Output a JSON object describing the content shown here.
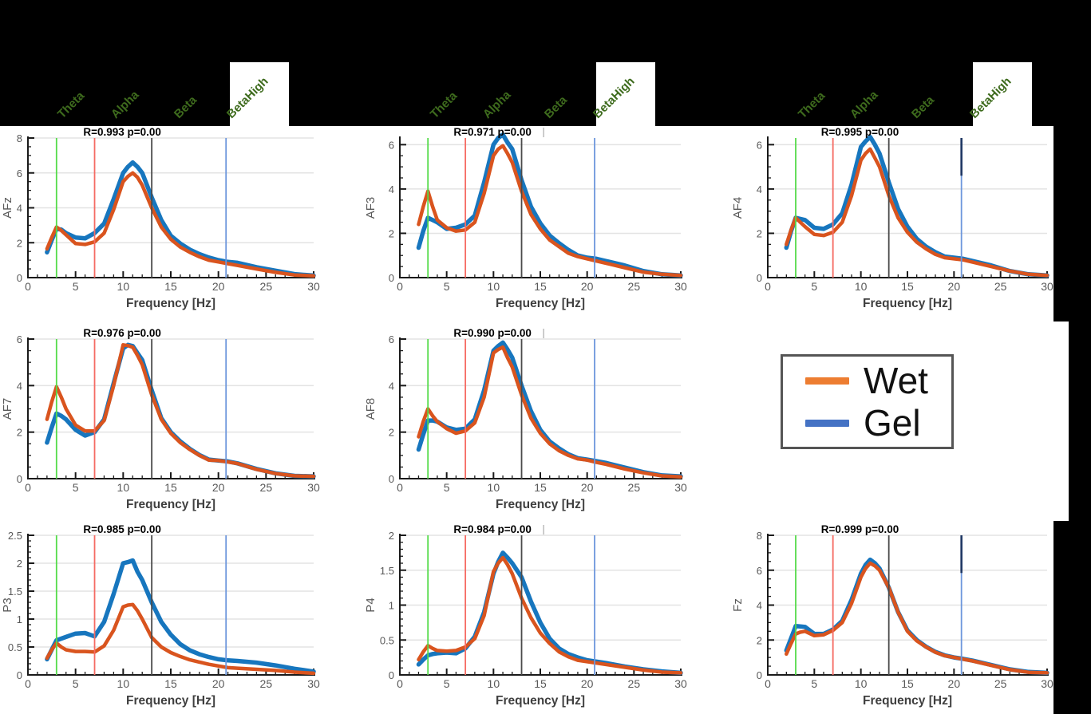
{
  "bands": {
    "labels": [
      "Theta",
      "Alpha",
      "Beta",
      "BetaHigh"
    ],
    "label_color": "#3E6B1D",
    "vlines": [
      {
        "freq": 3,
        "color": "#55DB4A"
      },
      {
        "freq": 7,
        "color": "#F56B63"
      },
      {
        "freq": 13,
        "color": "#4A4A4A"
      },
      {
        "freq": 20.8,
        "color": "#6C96DC"
      }
    ],
    "navy_cap_color": "#1F3864"
  },
  "legend": {
    "items": [
      {
        "label": "Wet",
        "color": "#ED7D31"
      },
      {
        "label": "Gel",
        "color": "#4472C4"
      }
    ]
  },
  "axis": {
    "xlabel": "Frequency [Hz]",
    "xticks": [
      0,
      5,
      10,
      15,
      20,
      25,
      30
    ],
    "xlim": [
      0,
      30
    ],
    "x_minor_step": 1
  },
  "colors": {
    "wet": "#D9541E",
    "gel": "#1776BE",
    "grid": "#E3E3E3",
    "spine": "#1A1A1A",
    "tick_label": "#595959",
    "channel_label": "#595959",
    "title": "#000000",
    "xlabel": "#3F3F3F",
    "title_artifact": "#BBBBBB"
  },
  "chart_data": {
    "type": "line",
    "x_label": "Frequency [Hz]",
    "series_names": [
      "Wet",
      "Gel"
    ],
    "x": [
      2,
      2.5,
      3,
      3.5,
      4,
      5,
      6,
      7,
      8,
      9,
      10,
      10.5,
      11,
      11.5,
      12,
      13,
      14,
      15,
      16,
      17,
      18,
      19,
      20,
      21,
      22,
      24,
      26,
      28,
      30
    ],
    "plots": [
      {
        "id": "afz",
        "name": "AFz",
        "title": "R=0.993 p=0.00",
        "row": 0,
        "col": 0,
        "ymax": 8,
        "yticks": [
          0,
          2,
          4,
          6,
          8
        ],
        "yminor": 0.5,
        "blue_cap": false,
        "artifact": false,
        "wet": [
          1.65,
          2.3,
          2.9,
          2.7,
          2.45,
          1.95,
          1.9,
          2.05,
          2.55,
          3.9,
          5.5,
          5.8,
          6.0,
          5.75,
          5.3,
          4.0,
          2.9,
          2.2,
          1.75,
          1.45,
          1.2,
          1.0,
          0.9,
          0.8,
          0.7,
          0.5,
          0.3,
          0.15,
          0.1
        ],
        "gel": [
          1.45,
          2.15,
          2.8,
          2.75,
          2.55,
          2.3,
          2.25,
          2.55,
          3.1,
          4.5,
          6.0,
          6.35,
          6.6,
          6.35,
          6.0,
          4.6,
          3.3,
          2.4,
          1.95,
          1.6,
          1.35,
          1.15,
          1.0,
          0.9,
          0.85,
          0.6,
          0.4,
          0.2,
          0.12
        ]
      },
      {
        "id": "af3",
        "name": "AF3",
        "title": "R=0.971 p=0.00",
        "row": 0,
        "col": 1,
        "ymax": 6.3,
        "yticks": [
          0,
          2,
          4,
          6
        ],
        "yminor": 0.5,
        "blue_cap": false,
        "artifact": true,
        "wet": [
          2.4,
          3.2,
          3.9,
          3.2,
          2.6,
          2.25,
          2.1,
          2.15,
          2.5,
          3.8,
          5.5,
          5.8,
          5.95,
          5.6,
          5.2,
          3.9,
          2.85,
          2.2,
          1.7,
          1.4,
          1.1,
          0.95,
          0.85,
          0.75,
          0.65,
          0.45,
          0.25,
          0.15,
          0.1
        ],
        "gel": [
          1.35,
          2.1,
          2.7,
          2.6,
          2.5,
          2.2,
          2.25,
          2.4,
          2.8,
          4.3,
          6.0,
          6.3,
          6.45,
          6.1,
          5.8,
          4.4,
          3.2,
          2.45,
          1.9,
          1.55,
          1.25,
          1.0,
          0.9,
          0.85,
          0.75,
          0.55,
          0.3,
          0.15,
          0.1
        ]
      },
      {
        "id": "af4",
        "name": "AF4",
        "title": "R=0.995 p=0.00",
        "row": 0,
        "col": 2,
        "ymax": 6.3,
        "yticks": [
          0,
          2,
          4,
          6
        ],
        "yminor": 0.5,
        "blue_cap": true,
        "artifact": false,
        "wet": [
          1.5,
          2.15,
          2.7,
          2.5,
          2.3,
          1.95,
          1.9,
          2.05,
          2.5,
          3.7,
          5.3,
          5.6,
          5.8,
          5.4,
          5.0,
          3.7,
          2.7,
          2.05,
          1.6,
          1.3,
          1.05,
          0.9,
          0.85,
          0.8,
          0.7,
          0.5,
          0.3,
          0.15,
          0.1
        ],
        "gel": [
          1.35,
          2.1,
          2.7,
          2.65,
          2.6,
          2.25,
          2.2,
          2.4,
          2.9,
          4.2,
          5.9,
          6.15,
          6.35,
          6.0,
          5.6,
          4.3,
          3.1,
          2.3,
          1.75,
          1.4,
          1.15,
          0.95,
          0.9,
          0.85,
          0.75,
          0.55,
          0.3,
          0.15,
          0.1
        ]
      },
      {
        "id": "af7",
        "name": "AF7",
        "title": "R=0.976 p=0.00",
        "row": 1,
        "col": 0,
        "ymax": 6,
        "yticks": [
          0,
          2,
          4,
          6
        ],
        "yminor": 0.5,
        "blue_cap": false,
        "artifact": false,
        "wet": [
          2.55,
          3.3,
          3.95,
          3.5,
          3.0,
          2.3,
          2.05,
          2.05,
          2.5,
          4.0,
          5.75,
          5.72,
          5.65,
          5.3,
          4.9,
          3.6,
          2.55,
          1.95,
          1.55,
          1.25,
          1.0,
          0.8,
          0.78,
          0.72,
          0.65,
          0.4,
          0.22,
          0.12,
          0.1
        ],
        "gel": [
          1.55,
          2.2,
          2.8,
          2.7,
          2.55,
          2.1,
          1.85,
          2.0,
          2.55,
          4.1,
          5.6,
          5.75,
          5.7,
          5.4,
          5.1,
          3.8,
          2.6,
          2.0,
          1.6,
          1.28,
          1.02,
          0.82,
          0.78,
          0.74,
          0.66,
          0.42,
          0.23,
          0.12,
          0.1
        ]
      },
      {
        "id": "af8",
        "name": "AF8",
        "title": "R=0.990 p=0.00",
        "row": 1,
        "col": 1,
        "ymax": 6,
        "yticks": [
          0,
          2,
          4,
          6
        ],
        "yminor": 0.5,
        "blue_cap": false,
        "artifact": true,
        "wet": [
          1.8,
          2.45,
          3.0,
          2.7,
          2.45,
          2.15,
          1.95,
          2.05,
          2.4,
          3.5,
          5.4,
          5.55,
          5.65,
          5.2,
          4.8,
          3.6,
          2.6,
          1.95,
          1.5,
          1.2,
          1.0,
          0.85,
          0.8,
          0.7,
          0.62,
          0.42,
          0.25,
          0.12,
          0.08
        ],
        "gel": [
          1.25,
          1.9,
          2.5,
          2.5,
          2.45,
          2.2,
          2.1,
          2.15,
          2.55,
          3.8,
          5.5,
          5.7,
          5.85,
          5.55,
          5.2,
          4.0,
          2.9,
          2.1,
          1.6,
          1.3,
          1.05,
          0.88,
          0.82,
          0.75,
          0.68,
          0.48,
          0.28,
          0.14,
          0.1
        ]
      },
      {
        "id": "p3",
        "name": "P3",
        "title": "R=0.985 p=0.00",
        "row": 2,
        "col": 0,
        "ymax": 2.5,
        "yticks": [
          0,
          0.5,
          1,
          1.5,
          2,
          2.5
        ],
        "yminor": 0.1,
        "blue_cap": false,
        "artifact": false,
        "wet": [
          0.3,
          0.45,
          0.57,
          0.5,
          0.45,
          0.42,
          0.42,
          0.41,
          0.52,
          0.8,
          1.22,
          1.25,
          1.26,
          1.15,
          1.0,
          0.67,
          0.5,
          0.4,
          0.33,
          0.27,
          0.23,
          0.19,
          0.16,
          0.13,
          0.12,
          0.1,
          0.08,
          0.05,
          0.03
        ],
        "gel": [
          0.28,
          0.45,
          0.62,
          0.65,
          0.68,
          0.74,
          0.75,
          0.69,
          0.95,
          1.45,
          2.0,
          2.02,
          2.05,
          1.85,
          1.7,
          1.3,
          0.95,
          0.72,
          0.55,
          0.44,
          0.37,
          0.32,
          0.28,
          0.26,
          0.25,
          0.22,
          0.17,
          0.11,
          0.06
        ]
      },
      {
        "id": "p4",
        "name": "P4",
        "title": "R=0.984 p=0.00",
        "row": 2,
        "col": 1,
        "ymax": 2,
        "yticks": [
          0,
          0.5,
          1,
          1.5,
          2
        ],
        "yminor": 0.1,
        "blue_cap": false,
        "artifact": true,
        "wet": [
          0.22,
          0.33,
          0.42,
          0.38,
          0.35,
          0.34,
          0.35,
          0.4,
          0.52,
          0.85,
          1.48,
          1.6,
          1.68,
          1.58,
          1.45,
          1.1,
          0.82,
          0.6,
          0.45,
          0.33,
          0.26,
          0.21,
          0.19,
          0.17,
          0.15,
          0.11,
          0.07,
          0.04,
          0.03
        ],
        "gel": [
          0.15,
          0.22,
          0.28,
          0.3,
          0.31,
          0.32,
          0.31,
          0.38,
          0.55,
          0.9,
          1.45,
          1.62,
          1.75,
          1.68,
          1.6,
          1.4,
          1.05,
          0.75,
          0.52,
          0.38,
          0.3,
          0.25,
          0.21,
          0.19,
          0.17,
          0.12,
          0.08,
          0.05,
          0.03
        ]
      },
      {
        "id": "fz",
        "name": "Fz",
        "title": "R=0.999 p=0.00",
        "row": 2,
        "col": 2,
        "ymax": 8,
        "yticks": [
          0,
          2,
          4,
          6,
          8
        ],
        "yminor": 0.5,
        "blue_cap": true,
        "artifact": false,
        "wet": [
          1.2,
          1.8,
          2.35,
          2.45,
          2.5,
          2.25,
          2.3,
          2.55,
          3.0,
          4.1,
          5.6,
          6.1,
          6.4,
          6.25,
          6.0,
          5.0,
          3.6,
          2.5,
          1.95,
          1.6,
          1.3,
          1.1,
          1.0,
          0.9,
          0.8,
          0.55,
          0.3,
          0.15,
          0.12
        ],
        "gel": [
          1.4,
          2.1,
          2.8,
          2.78,
          2.75,
          2.35,
          2.35,
          2.6,
          3.1,
          4.3,
          5.8,
          6.3,
          6.6,
          6.4,
          6.1,
          5.0,
          3.6,
          2.55,
          2.0,
          1.62,
          1.32,
          1.12,
          1.0,
          0.92,
          0.82,
          0.57,
          0.32,
          0.17,
          0.12
        ]
      }
    ]
  }
}
